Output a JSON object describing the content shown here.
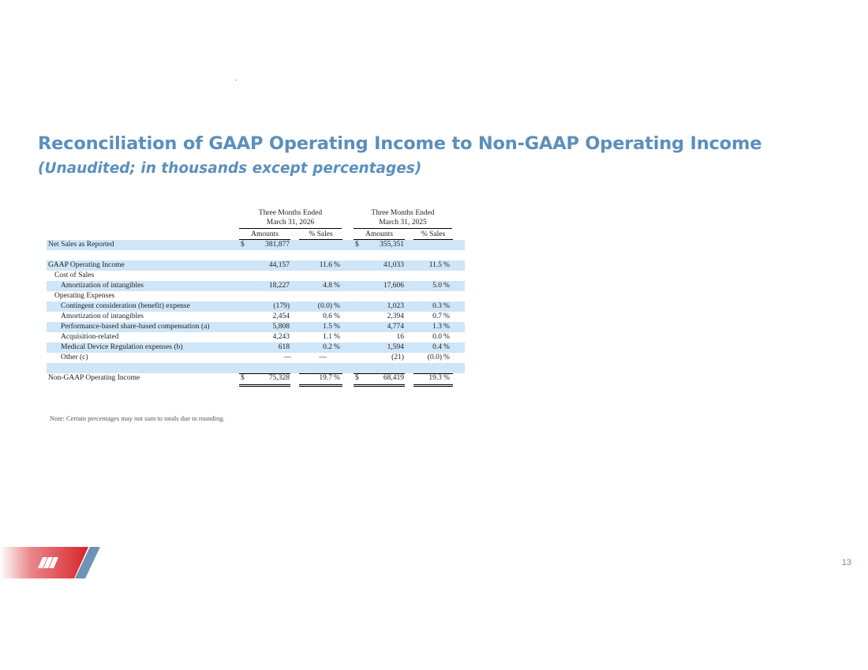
{
  "slide": {
    "title": "Reconciliation of GAAP Operating Income to Non-GAAP Operating Income",
    "subtitle": "(Unaudited; in thousands except percentages)",
    "page_number": "13",
    "note": "Note: Certain percentages may not sum to totals due to rounding."
  },
  "table": {
    "periods": [
      {
        "line1": "Three Months Ended",
        "line2": "March 31, 2026"
      },
      {
        "line1": "Three Months Ended",
        "line2": "March 31, 2025"
      }
    ],
    "col_amounts": "Amounts",
    "col_pct": "% Sales",
    "currency": "$",
    "pct_sign": "%",
    "rows": [
      {
        "label": "Net Sales as Reported",
        "a1": "381,877",
        "p1": "",
        "a2": "355,351",
        "p2": ""
      },
      {
        "label": "GAAP Operating Income",
        "a1": "44,157",
        "p1": "11.6",
        "a2": "41,033",
        "p2": "11.5"
      },
      {
        "label": "Cost of Sales"
      },
      {
        "label": "Amortization of intangibles",
        "a1": "18,227",
        "p1": "4.8",
        "a2": "17,606",
        "p2": "5.0"
      },
      {
        "label": "Operating Expenses"
      },
      {
        "label": "Contingent consideration (benefit) expense",
        "a1": "(179)",
        "p1": "(0.0)",
        "a2": "1,023",
        "p2": "0.3"
      },
      {
        "label": "Amortization of intangibles",
        "a1": "2,454",
        "p1": "0.6",
        "a2": "2,394",
        "p2": "0.7"
      },
      {
        "label": "Performance-based share-based compensation (a)",
        "a1": "5,808",
        "p1": "1.5",
        "a2": "4,774",
        "p2": "1.3"
      },
      {
        "label": "Acquisition-related",
        "a1": "4,243",
        "p1": "1.1",
        "a2": "16",
        "p2": "0.0"
      },
      {
        "label": "Medical Device Regulation expenses (b)",
        "a1": "618",
        "p1": "0.2",
        "a2": "1,594",
        "p2": "0.4"
      },
      {
        "label": "Other (c)",
        "a1": "—",
        "p1": "—",
        "a2": "(21)",
        "p2": "(0.0)"
      },
      {
        "label": "Non-GAAP Operating Income",
        "a1": "75,328",
        "p1": "19.7",
        "a2": "68,419",
        "p2": "19.3"
      }
    ]
  },
  "colors": {
    "title": "#5b8fbd",
    "row_highlight": "#cfe6f8",
    "logo_red": "#d9232b",
    "logo_blue": "#6f93b7"
  }
}
